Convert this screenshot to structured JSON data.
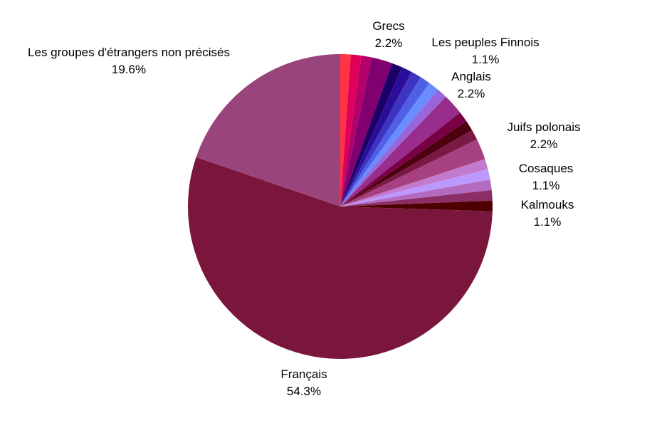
{
  "chart_data": {
    "type": "pie",
    "start": "12 o'clock",
    "direction": "clockwise",
    "slices": [
      {
        "name": "",
        "value": 1.1,
        "color": "#ff3344"
      },
      {
        "name": "",
        "value": 1.1,
        "color": "#e0005a"
      },
      {
        "name": "",
        "value": 1.1,
        "color": "#b3006b"
      },
      {
        "name": "Grecs",
        "value": 2.2,
        "color": "#800070"
      },
      {
        "name": "",
        "value": 1.1,
        "color": "#1a0066"
      },
      {
        "name": "",
        "value": 1.1,
        "color": "#2a0e99"
      },
      {
        "name": "",
        "value": 1.1,
        "color": "#3d35c2"
      },
      {
        "name": "",
        "value": 1.1,
        "color": "#5060e6"
      },
      {
        "name": "Les peuples Finnois",
        "value": 1.1,
        "color": "#6b8cff"
      },
      {
        "name": "",
        "value": 1.1,
        "color": "#9966d9"
      },
      {
        "name": "Anglais",
        "value": 2.2,
        "color": "#992d8c"
      },
      {
        "name": "",
        "value": 1.1,
        "color": "#7a0046"
      },
      {
        "name": "",
        "value": 1.1,
        "color": "#4d0010"
      },
      {
        "name": "",
        "value": 1.1,
        "color": "#7a1a44"
      },
      {
        "name": "Juifs polonais",
        "value": 2.2,
        "color": "#a64080"
      },
      {
        "name": "",
        "value": 1.1,
        "color": "#c27acc"
      },
      {
        "name": "Cosaques",
        "value": 1.1,
        "color": "#bb99ff"
      },
      {
        "name": "",
        "value": 1.1,
        "color": "#b36bbf"
      },
      {
        "name": "",
        "value": 1.1,
        "color": "#8c2e66"
      },
      {
        "name": "Kalmouks",
        "value": 1.1,
        "color": "#4d0000"
      },
      {
        "name": "Français",
        "value": 54.3,
        "color": "#7a153c"
      },
      {
        "name": "Les groupes d'étrangers non précisés",
        "value": 19.6,
        "color": "#99447a"
      }
    ],
    "labels": [
      {
        "name": "Grecs",
        "pct": "2.2%"
      },
      {
        "name": "Les peuples Finnois",
        "pct": "1.1%"
      },
      {
        "name": "Anglais",
        "pct": "2.2%"
      },
      {
        "name": "Juifs polonais",
        "pct": "2.2%"
      },
      {
        "name": "Cosaques",
        "pct": "1.1%"
      },
      {
        "name": "Kalmouks",
        "pct": "1.1%"
      },
      {
        "name": "Français",
        "pct": "54.3%"
      },
      {
        "name": "Les groupes d'étrangers non précisés",
        "pct": "19.6%"
      }
    ]
  }
}
